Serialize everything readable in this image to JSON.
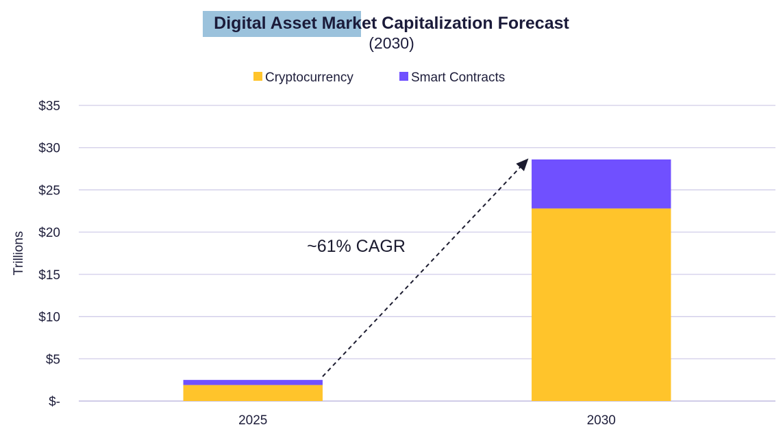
{
  "chart_data": {
    "type": "bar",
    "stacked": true,
    "title": "Digital Asset Market Capitalization Forecast",
    "subtitle": "(2030)",
    "xlabel": "",
    "ylabel": "Trillions",
    "ylim": [
      0,
      35
    ],
    "yticks": [
      0,
      5,
      10,
      15,
      20,
      25,
      30,
      35
    ],
    "ytick_labels": [
      "$-",
      "$5",
      "$10",
      "$15",
      "$20",
      "$25",
      "$30",
      "$35"
    ],
    "categories": [
      "2025",
      "2030"
    ],
    "series": [
      {
        "name": "Cryptocurrency",
        "color": "#ffc42b",
        "values": [
          1.9,
          22.8
        ]
      },
      {
        "name": "Smart Contracts",
        "color": "#7050ff",
        "values": [
          0.6,
          5.8
        ]
      }
    ],
    "annotation": {
      "text": "~61% CAGR",
      "arrow_from": [
        "2025",
        2.5
      ],
      "arrow_to": [
        "2030",
        28.6
      ]
    },
    "grid": true,
    "gridline_color": "#d0cce8",
    "legend_position": "top-center"
  }
}
